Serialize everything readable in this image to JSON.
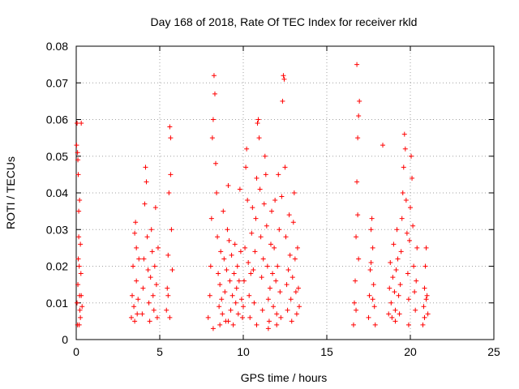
{
  "chart_data": {
    "type": "scatter",
    "title": "Day 168 of 2018, Rate Of TEC Index for receiver rkld",
    "xlabel": "GPS time / hours",
    "ylabel": "ROTI / TECUs",
    "xlim": [
      0,
      25
    ],
    "ylim": [
      0,
      0.08
    ],
    "grid": true,
    "marker": "+",
    "color": "#ff0000",
    "xticks": [
      0,
      5,
      10,
      15,
      20,
      25
    ],
    "xtick_labels": [
      "0",
      "5",
      "10",
      "15",
      "20",
      "25"
    ],
    "yticks": [
      0,
      0.01,
      0.02,
      0.03,
      0.04,
      0.05,
      0.06,
      0.07,
      0.08
    ],
    "ytick_labels": [
      "0",
      "0.01",
      "0.02",
      "0.03",
      "0.04",
      "0.05",
      "0.06",
      "0.07",
      "0.08"
    ],
    "series": [
      {
        "name": "ROTI",
        "points": [
          [
            0.02,
            0.053
          ],
          [
            0.05,
            0.059
          ],
          [
            0.08,
            0.051
          ],
          [
            0.1,
            0.049
          ],
          [
            0.12,
            0.045
          ],
          [
            0.15,
            0.028
          ],
          [
            0.18,
            0.02
          ],
          [
            0.2,
            0.012
          ],
          [
            0.22,
            0.008
          ],
          [
            0.25,
            0.006
          ],
          [
            0.05,
            0.01
          ],
          [
            0.08,
            0.004
          ],
          [
            0.1,
            0.015
          ],
          [
            0.15,
            0.035
          ],
          [
            0.2,
            0.038
          ],
          [
            0.25,
            0.026
          ],
          [
            0.3,
            0.059
          ],
          [
            0.3,
            0.012
          ],
          [
            0.35,
            0.009
          ],
          [
            0.28,
            0.018
          ],
          [
            0.12,
            0.022
          ],
          [
            0.18,
            0.004
          ],
          [
            3.3,
            0.006
          ],
          [
            3.35,
            0.012
          ],
          [
            3.4,
            0.02
          ],
          [
            3.45,
            0.009
          ],
          [
            3.5,
            0.029
          ],
          [
            3.55,
            0.032
          ],
          [
            3.6,
            0.016
          ],
          [
            3.65,
            0.007
          ],
          [
            3.7,
            0.011
          ],
          [
            3.75,
            0.022
          ],
          [
            3.5,
            0.005
          ],
          [
            3.6,
            0.025
          ],
          [
            3.95,
            0.007
          ],
          [
            4.0,
            0.014
          ],
          [
            4.05,
            0.022
          ],
          [
            4.1,
            0.037
          ],
          [
            4.15,
            0.047
          ],
          [
            4.2,
            0.043
          ],
          [
            4.25,
            0.028
          ],
          [
            4.3,
            0.019
          ],
          [
            4.35,
            0.01
          ],
          [
            4.4,
            0.005
          ],
          [
            4.45,
            0.017
          ],
          [
            4.5,
            0.03
          ],
          [
            4.55,
            0.024
          ],
          [
            4.6,
            0.012
          ],
          [
            4.65,
            0.008
          ],
          [
            4.7,
            0.02
          ],
          [
            4.75,
            0.036
          ],
          [
            4.8,
            0.015
          ],
          [
            4.85,
            0.006
          ],
          [
            4.9,
            0.025
          ],
          [
            5.4,
            0.008
          ],
          [
            5.45,
            0.014
          ],
          [
            5.5,
            0.023
          ],
          [
            5.55,
            0.04
          ],
          [
            5.6,
            0.058
          ],
          [
            5.65,
            0.055
          ],
          [
            5.7,
            0.03
          ],
          [
            5.75,
            0.019
          ],
          [
            5.6,
            0.006
          ],
          [
            5.5,
            0.012
          ],
          [
            5.65,
            0.045
          ],
          [
            7.9,
            0.006
          ],
          [
            8.0,
            0.012
          ],
          [
            8.05,
            0.02
          ],
          [
            8.1,
            0.033
          ],
          [
            8.15,
            0.055
          ],
          [
            8.2,
            0.06
          ],
          [
            8.25,
            0.072
          ],
          [
            8.3,
            0.067
          ],
          [
            8.35,
            0.048
          ],
          [
            8.4,
            0.04
          ],
          [
            8.45,
            0.028
          ],
          [
            8.5,
            0.018
          ],
          [
            8.55,
            0.009
          ],
          [
            8.6,
            0.015
          ],
          [
            8.65,
            0.024
          ],
          [
            8.7,
            0.011
          ],
          [
            8.75,
            0.007
          ],
          [
            8.8,
            0.035
          ],
          [
            8.85,
            0.022
          ],
          [
            8.9,
            0.013
          ],
          [
            8.95,
            0.005
          ],
          [
            9.0,
            0.019
          ],
          [
            9.05,
            0.03
          ],
          [
            9.1,
            0.042
          ],
          [
            9.15,
            0.027
          ],
          [
            9.2,
            0.016
          ],
          [
            9.25,
            0.008
          ],
          [
            9.3,
            0.023
          ],
          [
            9.35,
            0.012
          ],
          [
            9.4,
            0.004
          ],
          [
            9.45,
            0.018
          ],
          [
            9.5,
            0.026
          ],
          [
            9.55,
            0.01
          ],
          [
            9.6,
            0.014
          ],
          [
            9.65,
            0.02
          ],
          [
            9.7,
            0.007
          ],
          [
            9.75,
            0.016
          ],
          [
            9.8,
            0.041
          ],
          [
            9.85,
            0.024
          ],
          [
            9.9,
            0.011
          ],
          [
            9.95,
            0.006
          ],
          [
            8.2,
            0.003
          ],
          [
            8.6,
            0.004
          ],
          [
            9.1,
            0.005
          ],
          [
            10.0,
            0.009
          ],
          [
            10.05,
            0.016
          ],
          [
            10.1,
            0.025
          ],
          [
            10.15,
            0.047
          ],
          [
            10.2,
            0.052
          ],
          [
            10.25,
            0.038
          ],
          [
            10.3,
            0.021
          ],
          [
            10.35,
            0.012
          ],
          [
            10.4,
            0.006
          ],
          [
            10.45,
            0.018
          ],
          [
            10.5,
            0.029
          ],
          [
            10.55,
            0.036
          ],
          [
            10.6,
            0.019
          ],
          [
            10.65,
            0.01
          ],
          [
            10.7,
            0.024
          ],
          [
            10.75,
            0.033
          ],
          [
            10.8,
            0.044
          ],
          [
            10.85,
            0.059
          ],
          [
            10.9,
            0.06
          ],
          [
            10.95,
            0.055
          ],
          [
            11.0,
            0.041
          ],
          [
            11.05,
            0.028
          ],
          [
            11.1,
            0.017
          ],
          [
            11.15,
            0.008
          ],
          [
            11.2,
            0.022
          ],
          [
            11.25,
            0.037
          ],
          [
            11.3,
            0.05
          ],
          [
            11.35,
            0.045
          ],
          [
            11.4,
            0.031
          ],
          [
            11.45,
            0.02
          ],
          [
            11.5,
            0.011
          ],
          [
            11.55,
            0.005
          ],
          [
            11.6,
            0.014
          ],
          [
            11.65,
            0.026
          ],
          [
            11.7,
            0.035
          ],
          [
            11.75,
            0.018
          ],
          [
            11.8,
            0.009
          ],
          [
            11.85,
            0.025
          ],
          [
            11.9,
            0.038
          ],
          [
            11.95,
            0.016
          ],
          [
            12.0,
            0.007
          ],
          [
            12.05,
            0.02
          ],
          [
            12.1,
            0.045
          ],
          [
            12.15,
            0.03
          ],
          [
            12.2,
            0.013
          ],
          [
            12.25,
            0.006
          ],
          [
            12.3,
            0.039
          ],
          [
            12.35,
            0.065
          ],
          [
            12.4,
            0.072
          ],
          [
            12.45,
            0.071
          ],
          [
            12.5,
            0.047
          ],
          [
            12.55,
            0.028
          ],
          [
            12.6,
            0.015
          ],
          [
            12.65,
            0.008
          ],
          [
            12.7,
            0.019
          ],
          [
            12.75,
            0.034
          ],
          [
            12.8,
            0.023
          ],
          [
            12.85,
            0.011
          ],
          [
            12.9,
            0.005
          ],
          [
            12.95,
            0.017
          ],
          [
            13.0,
            0.032
          ],
          [
            13.05,
            0.04
          ],
          [
            13.1,
            0.022
          ],
          [
            13.15,
            0.013
          ],
          [
            13.2,
            0.007
          ],
          [
            13.25,
            0.025
          ],
          [
            13.3,
            0.014
          ],
          [
            13.35,
            0.009
          ],
          [
            10.8,
            0.004
          ],
          [
            11.5,
            0.003
          ],
          [
            12.0,
            0.004
          ],
          [
            16.6,
            0.004
          ],
          [
            16.65,
            0.01
          ],
          [
            16.7,
            0.016
          ],
          [
            16.75,
            0.028
          ],
          [
            16.8,
            0.043
          ],
          [
            16.85,
            0.055
          ],
          [
            16.9,
            0.061
          ],
          [
            16.95,
            0.065
          ],
          [
            16.8,
            0.075
          ],
          [
            16.85,
            0.034
          ],
          [
            16.9,
            0.022
          ],
          [
            16.75,
            0.008
          ],
          [
            17.5,
            0.006
          ],
          [
            17.55,
            0.012
          ],
          [
            17.6,
            0.019
          ],
          [
            17.65,
            0.03
          ],
          [
            17.7,
            0.033
          ],
          [
            17.75,
            0.025
          ],
          [
            17.8,
            0.015
          ],
          [
            17.85,
            0.009
          ],
          [
            17.9,
            0.004
          ],
          [
            17.65,
            0.021
          ],
          [
            17.75,
            0.011
          ],
          [
            18.35,
            0.053
          ],
          [
            18.7,
            0.007
          ],
          [
            18.75,
            0.014
          ],
          [
            18.8,
            0.021
          ],
          [
            18.85,
            0.01
          ],
          [
            18.9,
            0.006
          ],
          [
            18.95,
            0.017
          ],
          [
            19.0,
            0.026
          ],
          [
            19.05,
            0.013
          ],
          [
            19.1,
            0.008
          ],
          [
            19.15,
            0.019
          ],
          [
            19.2,
            0.03
          ],
          [
            19.25,
            0.022
          ],
          [
            19.3,
            0.012
          ],
          [
            19.35,
            0.007
          ],
          [
            19.4,
            0.015
          ],
          [
            19.45,
            0.024
          ],
          [
            19.5,
            0.033
          ],
          [
            19.55,
            0.04
          ],
          [
            19.6,
            0.047
          ],
          [
            19.65,
            0.056
          ],
          [
            19.7,
            0.052
          ],
          [
            19.75,
            0.038
          ],
          [
            19.8,
            0.029
          ],
          [
            19.85,
            0.018
          ],
          [
            19.9,
            0.011
          ],
          [
            19.95,
            0.027
          ],
          [
            20.0,
            0.036
          ],
          [
            20.05,
            0.05
          ],
          [
            20.1,
            0.044
          ],
          [
            20.15,
            0.031
          ],
          [
            20.2,
            0.02
          ],
          [
            20.25,
            0.013
          ],
          [
            20.3,
            0.008
          ],
          [
            20.35,
            0.016
          ],
          [
            20.4,
            0.025
          ],
          [
            19.1,
            0.005
          ],
          [
            19.9,
            0.004
          ],
          [
            20.75,
            0.004
          ],
          [
            20.8,
            0.009
          ],
          [
            20.85,
            0.014
          ],
          [
            20.9,
            0.02
          ],
          [
            20.95,
            0.025
          ],
          [
            21.0,
            0.012
          ],
          [
            21.05,
            0.007
          ],
          [
            20.85,
            0.006
          ],
          [
            20.95,
            0.011
          ]
        ]
      }
    ]
  }
}
